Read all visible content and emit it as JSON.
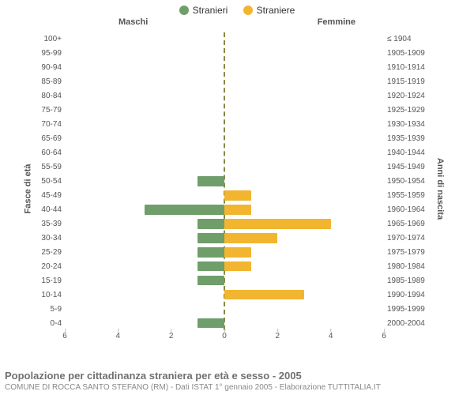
{
  "legend": {
    "male": {
      "label": "Stranieri",
      "color": "#6f9e6b"
    },
    "female": {
      "label": "Straniere",
      "color": "#f2b530"
    }
  },
  "headers": {
    "left": "Maschi",
    "right": "Femmine"
  },
  "axis_titles": {
    "left": "Fasce di età",
    "right": "Anni di nascita"
  },
  "chart": {
    "xmax": 6,
    "xticks": [
      6,
      4,
      2,
      0,
      2,
      4,
      6
    ],
    "bar_color_left": "#6f9e6b",
    "bar_color_right": "#f2b530",
    "center_line_color": "#888844",
    "background_color": "#ffffff",
    "grid_color": "#e0e0e0",
    "label_fontsize": 10
  },
  "rows": [
    {
      "age": "100+",
      "birth": "≤ 1904",
      "m": 0,
      "f": 0
    },
    {
      "age": "95-99",
      "birth": "1905-1909",
      "m": 0,
      "f": 0
    },
    {
      "age": "90-94",
      "birth": "1910-1914",
      "m": 0,
      "f": 0
    },
    {
      "age": "85-89",
      "birth": "1915-1919",
      "m": 0,
      "f": 0
    },
    {
      "age": "80-84",
      "birth": "1920-1924",
      "m": 0,
      "f": 0
    },
    {
      "age": "75-79",
      "birth": "1925-1929",
      "m": 0,
      "f": 0
    },
    {
      "age": "70-74",
      "birth": "1930-1934",
      "m": 0,
      "f": 0
    },
    {
      "age": "65-69",
      "birth": "1935-1939",
      "m": 0,
      "f": 0
    },
    {
      "age": "60-64",
      "birth": "1940-1944",
      "m": 0,
      "f": 0
    },
    {
      "age": "55-59",
      "birth": "1945-1949",
      "m": 0,
      "f": 0
    },
    {
      "age": "50-54",
      "birth": "1950-1954",
      "m": 1,
      "f": 0
    },
    {
      "age": "45-49",
      "birth": "1955-1959",
      "m": 0,
      "f": 1
    },
    {
      "age": "40-44",
      "birth": "1960-1964",
      "m": 3,
      "f": 1
    },
    {
      "age": "35-39",
      "birth": "1965-1969",
      "m": 1,
      "f": 4
    },
    {
      "age": "30-34",
      "birth": "1970-1974",
      "m": 1,
      "f": 2
    },
    {
      "age": "25-29",
      "birth": "1975-1979",
      "m": 1,
      "f": 1
    },
    {
      "age": "20-24",
      "birth": "1980-1984",
      "m": 1,
      "f": 1
    },
    {
      "age": "15-19",
      "birth": "1985-1989",
      "m": 1,
      "f": 0
    },
    {
      "age": "10-14",
      "birth": "1990-1994",
      "m": 0,
      "f": 3
    },
    {
      "age": "5-9",
      "birth": "1995-1999",
      "m": 0,
      "f": 0
    },
    {
      "age": "0-4",
      "birth": "2000-2004",
      "m": 1,
      "f": 0
    }
  ],
  "footer": {
    "title": "Popolazione per cittadinanza straniera per età e sesso - 2005",
    "subtitle": "COMUNE DI ROCCA SANTO STEFANO (RM) - Dati ISTAT 1° gennaio 2005 - Elaborazione TUTTITALIA.IT"
  }
}
